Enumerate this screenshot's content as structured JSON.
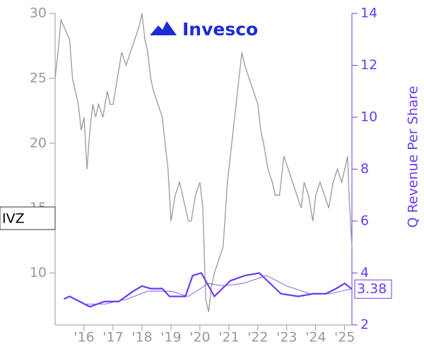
{
  "chart_data": {
    "type": "line",
    "logo_text": "Invesco",
    "y2_label": "Q Revenue Per Share",
    "xlim": [
      2015,
      2025.25
    ],
    "xticks": [
      {
        "value": 2016,
        "label": "'16"
      },
      {
        "value": 2017,
        "label": "'17"
      },
      {
        "value": 2018,
        "label": "'18"
      },
      {
        "value": 2019,
        "label": "'19"
      },
      {
        "value": 2020,
        "label": "'20"
      },
      {
        "value": 2021,
        "label": "'21"
      },
      {
        "value": 2022,
        "label": "'22"
      },
      {
        "value": 2023,
        "label": "'23"
      },
      {
        "value": 2024,
        "label": "'24"
      },
      {
        "value": 2025,
        "label": "'25"
      }
    ],
    "ylim": [
      6,
      30
    ],
    "yticks": [
      10,
      15,
      20,
      25,
      30
    ],
    "y2lim": [
      2,
      14
    ],
    "y2ticks": [
      2,
      4,
      6,
      8,
      10,
      12,
      14
    ],
    "series": [
      {
        "name": "IVZ",
        "color": "#999999",
        "width": 1.3,
        "x": [
          2015.0,
          2015.1,
          2015.2,
          2015.3,
          2015.4,
          2015.5,
          2015.6,
          2015.7,
          2015.8,
          2015.9,
          2016.0,
          2016.1,
          2016.2,
          2016.3,
          2016.4,
          2016.5,
          2016.65,
          2016.8,
          2016.9,
          2017.0,
          2017.15,
          2017.3,
          2017.45,
          2017.6,
          2017.75,
          2017.9,
          2018.0,
          2018.1,
          2018.2,
          2018.3,
          2018.4,
          2018.55,
          2018.7,
          2018.8,
          2018.9,
          2019.0,
          2019.15,
          2019.3,
          2019.4,
          2019.5,
          2019.6,
          2019.7,
          2019.85,
          2020.0,
          2020.1,
          2020.2,
          2020.3,
          2020.4,
          2020.5,
          2020.65,
          2020.8,
          2020.95,
          2021.1,
          2021.3,
          2021.45,
          2021.55,
          2021.7,
          2021.85,
          2022.0,
          2022.1,
          2022.2,
          2022.35,
          2022.5,
          2022.6,
          2022.75,
          2022.9,
          2023.05,
          2023.2,
          2023.35,
          2023.5,
          2023.6,
          2023.75,
          2023.9,
          2024.0,
          2024.15,
          2024.3,
          2024.45,
          2024.6,
          2024.75,
          2024.9,
          2025.0,
          2025.1,
          2025.15,
          2025.2,
          2025.25
        ],
        "values": [
          25,
          27,
          29.5,
          29,
          28.5,
          28,
          25,
          24,
          23,
          21,
          22,
          18,
          21,
          23,
          22,
          23,
          22,
          24,
          23,
          23,
          25,
          27,
          26,
          27,
          28,
          29,
          30,
          28,
          27,
          25,
          24,
          23,
          22,
          20,
          18,
          14,
          16,
          17,
          16,
          15,
          14,
          14,
          16,
          17,
          15,
          8,
          7,
          9,
          10,
          11,
          12,
          17,
          20,
          24,
          27,
          26,
          25,
          24,
          23,
          21,
          20,
          18,
          17,
          16,
          16,
          19,
          18,
          17,
          16,
          15,
          17,
          16,
          14,
          16,
          17,
          16,
          15,
          17,
          18,
          17,
          18,
          19,
          16,
          14,
          12
        ]
      },
      {
        "name": "Q Revenue Per Share",
        "color": "#6a3cf0",
        "width": 2.2,
        "axis": "y2",
        "x": [
          2015.3,
          2015.5,
          2016.2,
          2016.7,
          2017.2,
          2017.7,
          2018.0,
          2018.3,
          2018.7,
          2018.95,
          2019.5,
          2019.75,
          2020.05,
          2020.5,
          2021.05,
          2021.55,
          2022.05,
          2022.8,
          2023.4,
          2023.9,
          2024.35,
          2024.7,
          2025.0,
          2025.25
        ],
        "values": [
          3.0,
          3.1,
          2.7,
          2.9,
          2.9,
          3.3,
          3.5,
          3.4,
          3.4,
          3.1,
          3.1,
          3.9,
          4.0,
          3.1,
          3.7,
          3.9,
          4.0,
          3.2,
          3.1,
          3.2,
          3.2,
          3.4,
          3.6,
          3.38
        ],
        "value_labels": [
          null,
          null,
          null,
          null,
          null,
          null,
          null,
          null,
          null,
          null,
          null,
          null,
          null,
          null,
          null,
          null,
          null,
          null,
          null,
          null,
          null,
          null,
          null,
          "3.38"
        ]
      },
      {
        "color": "#6a3cf0",
        "width": 0.8,
        "axis": "y2",
        "x": [
          2016.0,
          2016.7,
          2017.5,
          2018.2,
          2019.0,
          2019.6,
          2020.3,
          2020.8,
          2021.5,
          2022.3,
          2023.0,
          2023.8,
          2024.5,
          2025.25
        ],
        "values": [
          2.8,
          2.8,
          3.0,
          3.3,
          3.3,
          3.1,
          3.6,
          3.5,
          3.6,
          3.9,
          3.5,
          3.2,
          3.2,
          3.4
        ]
      }
    ]
  }
}
